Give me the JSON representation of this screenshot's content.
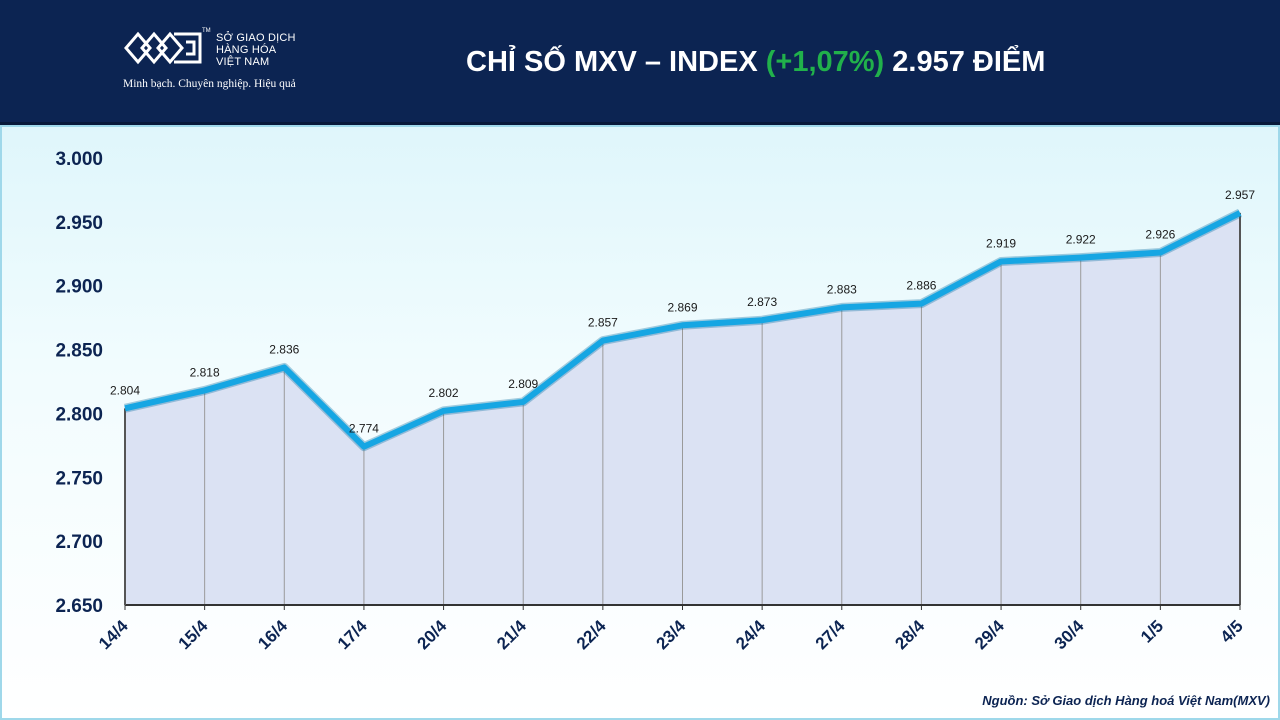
{
  "header": {
    "logo": {
      "tm": "TM",
      "lines": [
        "SỞ GIAO DỊCH",
        "HÀNG HÓA",
        "VIỆT NAM"
      ],
      "tagline": "Minh bạch. Chuyên nghiệp. Hiệu quả"
    },
    "title_main": "CHỈ SỐ MXV – INDEX ",
    "title_change": "(+1,07%)",
    "title_value": " 2.957 ĐIỂM"
  },
  "colors": {
    "header_bg": "#0c2452",
    "line": "#16a6e3",
    "fill": "#dbe2f3",
    "positive": "#21b14b"
  },
  "chart_data": {
    "type": "area",
    "categories": [
      "14/4",
      "15/4",
      "16/4",
      "17/4",
      "20/4",
      "21/4",
      "22/4",
      "23/4",
      "24/4",
      "27/4",
      "28/4",
      "29/4",
      "30/4",
      "1/5",
      "4/5"
    ],
    "series": [
      {
        "values": [
          2804,
          2818,
          2836,
          2774,
          2802,
          2809,
          2857,
          2869,
          2873,
          2883,
          2886,
          2919,
          2922,
          2926,
          2957
        ],
        "labels": [
          "2.804",
          "2.818",
          "2.836",
          "2.774",
          "2.802",
          "2.809",
          "2.857",
          "2.869",
          "2.873",
          "2.883",
          "2.886",
          "2.919",
          "2.922",
          "2.926",
          "2.957"
        ]
      }
    ],
    "ylim": [
      2650,
      3000
    ],
    "yticks": [
      2650,
      2700,
      2750,
      2800,
      2850,
      2900,
      2950,
      3000
    ],
    "ytick_labels": [
      "2.650",
      "2.700",
      "2.750",
      "2.800",
      "2.850",
      "2.900",
      "2.950",
      "3.000"
    ],
    "grid": false,
    "legend": "none"
  },
  "source": "Nguồn: Sở Giao dịch Hàng hoá Việt Nam(MXV)"
}
